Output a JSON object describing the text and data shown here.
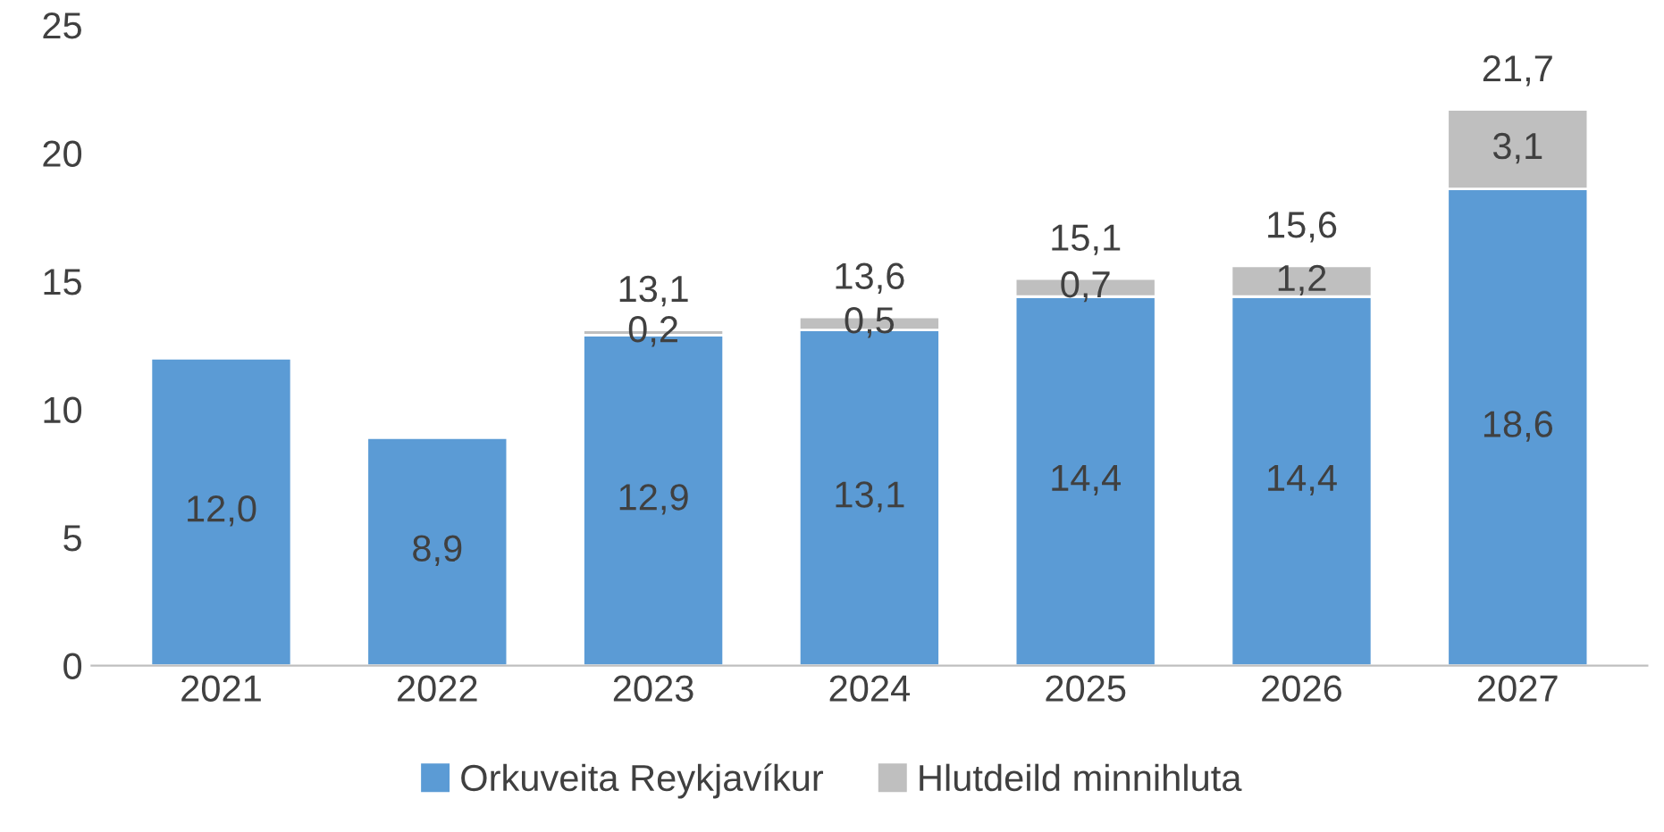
{
  "chart_data": {
    "type": "bar",
    "stacked": true,
    "categories": [
      "2021",
      "2022",
      "2023",
      "2024",
      "2025",
      "2026",
      "2027"
    ],
    "series": [
      {
        "name": "Orkuveita Reykjavíkur",
        "color": "#5b9bd5",
        "values": [
          12.0,
          8.9,
          12.9,
          13.1,
          14.4,
          14.4,
          18.6
        ],
        "value_labels": [
          "12,0",
          "8,9",
          "12,9",
          "13,1",
          "14,4",
          "14,4",
          "18,6"
        ]
      },
      {
        "name": "Hlutdeild minnihluta",
        "color": "#bfbfbf",
        "values": [
          null,
          null,
          0.2,
          0.5,
          0.7,
          1.2,
          3.1
        ],
        "value_labels": [
          null,
          null,
          "0,2",
          "0,5",
          "0,7",
          "1,2",
          "3,1"
        ]
      }
    ],
    "totals": [
      null,
      null,
      "13,1",
      "13,6",
      "15,1",
      "15,6",
      "21,7"
    ],
    "ylim": [
      0,
      25
    ],
    "yticks": [
      0,
      5,
      10,
      15,
      20,
      25
    ],
    "grid": false,
    "legend": "bottom"
  }
}
